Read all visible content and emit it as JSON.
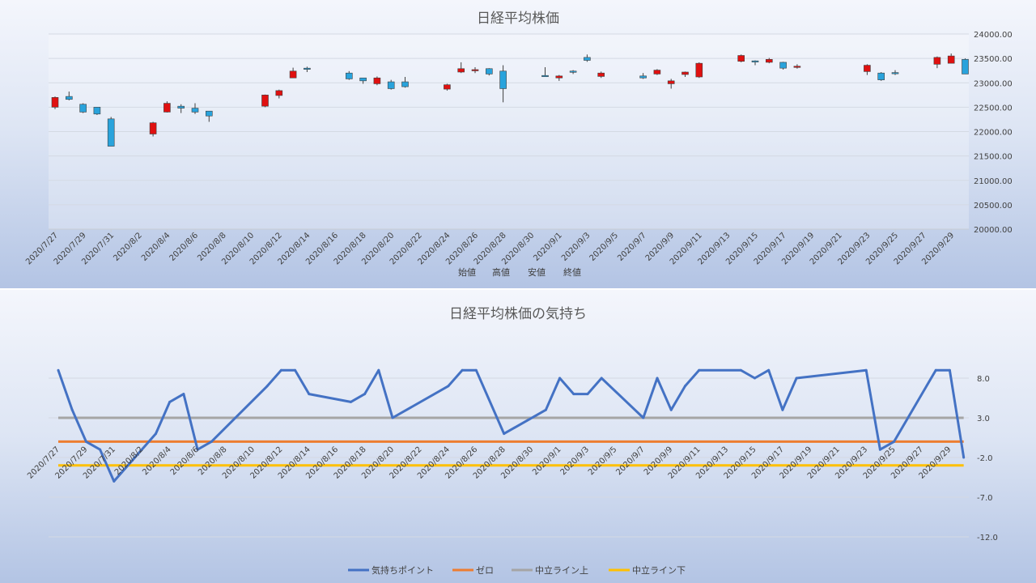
{
  "chart_data": [
    {
      "type": "candlestick",
      "title": "日経平均株価",
      "legend": [
        "始値",
        "高値",
        "安値",
        "終値"
      ],
      "legend_position": "bottom",
      "ylim": [
        20000,
        24000
      ],
      "y_ticks": [
        "20000.00",
        "20500.00",
        "21000.00",
        "21500.00",
        "22000.00",
        "22500.00",
        "23000.00",
        "23500.00",
        "24000.00"
      ],
      "x_tick_labels": [
        "2020/7/27",
        "2020/7/29",
        "2020/7/31",
        "2020/8/2",
        "2020/8/4",
        "2020/8/6",
        "2020/8/8",
        "2020/8/10",
        "2020/8/12",
        "2020/8/14",
        "2020/8/16",
        "2020/8/18",
        "2020/8/20",
        "2020/8/22",
        "2020/8/24",
        "2020/8/26",
        "2020/8/28",
        "2020/8/30",
        "2020/9/1",
        "2020/9/3",
        "2020/9/5",
        "2020/9/7",
        "2020/9/9",
        "2020/9/11",
        "2020/9/13",
        "2020/9/15",
        "2020/9/17",
        "2020/9/19",
        "2020/9/21",
        "2020/9/23",
        "2020/9/25",
        "2020/9/27",
        "2020/9/29"
      ],
      "colors": {
        "up": "#29a3dc",
        "down": "#e01010"
      },
      "candles": [
        {
          "date": "2020/7/27",
          "open": 22700,
          "high": 22720,
          "low": 22460,
          "close": 22500
        },
        {
          "date": "2020/7/28",
          "open": 22660,
          "high": 22820,
          "low": 22640,
          "close": 22720
        },
        {
          "date": "2020/7/29",
          "open": 22400,
          "high": 22580,
          "low": 22380,
          "close": 22560
        },
        {
          "date": "2020/7/30",
          "open": 22360,
          "high": 22500,
          "low": 22340,
          "close": 22500
        },
        {
          "date": "2020/7/31",
          "open": 21700,
          "high": 22300,
          "low": 21700,
          "close": 22260
        },
        {
          "date": "2020/8/3",
          "open": 22180,
          "high": 22200,
          "low": 21900,
          "close": 21950
        },
        {
          "date": "2020/8/4",
          "open": 22580,
          "high": 22620,
          "low": 22390,
          "close": 22400
        },
        {
          "date": "2020/8/5",
          "open": 22480,
          "high": 22560,
          "low": 22380,
          "close": 22520
        },
        {
          "date": "2020/8/6",
          "open": 22400,
          "high": 22580,
          "low": 22360,
          "close": 22480
        },
        {
          "date": "2020/8/7",
          "open": 22320,
          "high": 22420,
          "low": 22200,
          "close": 22420
        },
        {
          "date": "2020/8/11",
          "open": 22750,
          "high": 22760,
          "low": 22500,
          "close": 22520
        },
        {
          "date": "2020/8/12",
          "open": 22840,
          "high": 22860,
          "low": 22680,
          "close": 22740
        },
        {
          "date": "2020/8/13",
          "open": 23240,
          "high": 23310,
          "low": 23100,
          "close": 23100
        },
        {
          "date": "2020/8/14",
          "open": 23280,
          "high": 23330,
          "low": 23220,
          "close": 23300
        },
        {
          "date": "2020/8/17",
          "open": 23080,
          "high": 23240,
          "low": 23060,
          "close": 23200
        },
        {
          "date": "2020/8/18",
          "open": 23040,
          "high": 23100,
          "low": 22980,
          "close": 23100
        },
        {
          "date": "2020/8/19",
          "open": 23100,
          "high": 23130,
          "low": 22950,
          "close": 22980
        },
        {
          "date": "2020/8/20",
          "open": 22880,
          "high": 23060,
          "low": 22860,
          "close": 23020
        },
        {
          "date": "2020/8/21",
          "open": 22920,
          "high": 23120,
          "low": 22900,
          "close": 23020
        },
        {
          "date": "2020/8/24",
          "open": 22960,
          "high": 22980,
          "low": 22840,
          "close": 22870
        },
        {
          "date": "2020/8/25",
          "open": 23290,
          "high": 23420,
          "low": 23200,
          "close": 23220
        },
        {
          "date": "2020/8/26",
          "open": 23270,
          "high": 23320,
          "low": 23200,
          "close": 23250
        },
        {
          "date": "2020/8/27",
          "open": 23180,
          "high": 23300,
          "low": 23150,
          "close": 23290
        },
        {
          "date": "2020/8/28",
          "open": 22880,
          "high": 23360,
          "low": 22600,
          "close": 23240
        },
        {
          "date": "2020/8/31",
          "open": 23140,
          "high": 23320,
          "low": 23120,
          "close": 23150
        },
        {
          "date": "2020/9/1",
          "open": 23140,
          "high": 23160,
          "low": 23040,
          "close": 23100
        },
        {
          "date": "2020/9/2",
          "open": 23220,
          "high": 23260,
          "low": 23180,
          "close": 23240
        },
        {
          "date": "2020/9/3",
          "open": 23460,
          "high": 23580,
          "low": 23430,
          "close": 23520
        },
        {
          "date": "2020/9/4",
          "open": 23200,
          "high": 23230,
          "low": 23100,
          "close": 23130
        },
        {
          "date": "2020/9/7",
          "open": 23100,
          "high": 23200,
          "low": 23080,
          "close": 23140
        },
        {
          "date": "2020/9/8",
          "open": 23260,
          "high": 23280,
          "low": 23160,
          "close": 23180
        },
        {
          "date": "2020/9/9",
          "open": 23040,
          "high": 23080,
          "low": 22880,
          "close": 22980
        },
        {
          "date": "2020/9/10",
          "open": 23220,
          "high": 23230,
          "low": 23120,
          "close": 23170
        },
        {
          "date": "2020/9/11",
          "open": 23400,
          "high": 23420,
          "low": 23100,
          "close": 23120
        },
        {
          "date": "2020/9/14",
          "open": 23560,
          "high": 23580,
          "low": 23420,
          "close": 23440
        },
        {
          "date": "2020/9/15",
          "open": 23440,
          "high": 23460,
          "low": 23360,
          "close": 23450
        },
        {
          "date": "2020/9/16",
          "open": 23480,
          "high": 23510,
          "low": 23400,
          "close": 23420
        },
        {
          "date": "2020/9/17",
          "open": 23300,
          "high": 23430,
          "low": 23270,
          "close": 23420
        },
        {
          "date": "2020/9/18",
          "open": 23340,
          "high": 23380,
          "low": 23290,
          "close": 23320
        },
        {
          "date": "2020/9/23",
          "open": 23360,
          "high": 23380,
          "low": 23160,
          "close": 23230
        },
        {
          "date": "2020/9/24",
          "open": 23060,
          "high": 23220,
          "low": 23040,
          "close": 23200
        },
        {
          "date": "2020/9/25",
          "open": 23190,
          "high": 23260,
          "low": 23160,
          "close": 23210
        },
        {
          "date": "2020/9/28",
          "open": 23520,
          "high": 23540,
          "low": 23300,
          "close": 23380
        },
        {
          "date": "2020/9/29",
          "open": 23550,
          "high": 23600,
          "low": 23400,
          "close": 23400
        },
        {
          "date": "2020/9/30",
          "open": 23180,
          "high": 23500,
          "low": 23180,
          "close": 23480
        }
      ]
    },
    {
      "type": "line",
      "title": "日経平均株価の気持ち",
      "legend_position": "bottom",
      "ylim": [
        -12,
        8
      ],
      "y_ticks": [
        "-12.0",
        "-7.0",
        "-2.0",
        "3.0",
        "8.0"
      ],
      "y_tick_colors": {
        "negative": "#e01010",
        "positive": "#404040"
      },
      "x_tick_labels": [
        "2020/7/27",
        "2020/7/29",
        "2020/7/31",
        "2020/8/2",
        "2020/8/4",
        "2020/8/6",
        "2020/8/8",
        "2020/8/10",
        "2020/8/12",
        "2020/8/14",
        "2020/8/16",
        "2020/8/18",
        "2020/8/20",
        "2020/8/22",
        "2020/8/24",
        "2020/8/26",
        "2020/8/28",
        "2020/8/30",
        "2020/9/1",
        "2020/9/3",
        "2020/9/5",
        "2020/9/7",
        "2020/9/9",
        "2020/9/11",
        "2020/9/13",
        "2020/9/15",
        "2020/9/17",
        "2020/9/19",
        "2020/9/21",
        "2020/9/23",
        "2020/9/25",
        "2020/9/27",
        "2020/9/29"
      ],
      "series": [
        {
          "name": "気持ちポイント",
          "color": "#4472c4",
          "points": [
            [
              "2020/7/27",
              9
            ],
            [
              "2020/7/28",
              4
            ],
            [
              "2020/7/29",
              0
            ],
            [
              "2020/7/30",
              -1
            ],
            [
              "2020/7/31",
              -5
            ],
            [
              "2020/8/3",
              1
            ],
            [
              "2020/8/4",
              5
            ],
            [
              "2020/8/5",
              6
            ],
            [
              "2020/8/6",
              -1
            ],
            [
              "2020/8/7",
              0
            ],
            [
              "2020/8/11",
              7
            ],
            [
              "2020/8/12",
              9
            ],
            [
              "2020/8/13",
              9
            ],
            [
              "2020/8/14",
              6
            ],
            [
              "2020/8/17",
              5
            ],
            [
              "2020/8/18",
              6
            ],
            [
              "2020/8/19",
              9
            ],
            [
              "2020/8/20",
              3
            ],
            [
              "2020/8/24",
              7
            ],
            [
              "2020/8/25",
              9
            ],
            [
              "2020/8/26",
              9
            ],
            [
              "2020/8/28",
              1
            ],
            [
              "2020/8/31",
              4
            ],
            [
              "2020/9/1",
              8
            ],
            [
              "2020/9/2",
              6
            ],
            [
              "2020/9/3",
              6
            ],
            [
              "2020/9/4",
              8
            ],
            [
              "2020/9/7",
              3
            ],
            [
              "2020/9/8",
              8
            ],
            [
              "2020/9/9",
              4
            ],
            [
              "2020/9/10",
              7
            ],
            [
              "2020/9/11",
              9
            ],
            [
              "2020/9/14",
              9
            ],
            [
              "2020/9/15",
              8
            ],
            [
              "2020/9/16",
              9
            ],
            [
              "2020/9/17",
              4
            ],
            [
              "2020/9/18",
              8
            ],
            [
              "2020/9/23",
              9
            ],
            [
              "2020/9/24",
              -1
            ],
            [
              "2020/9/25",
              0
            ],
            [
              "2020/9/28",
              9
            ],
            [
              "2020/9/29",
              9
            ],
            [
              "2020/9/30",
              -2
            ]
          ]
        },
        {
          "name": "ゼロ",
          "color": "#ed7d31",
          "value": 0
        },
        {
          "name": "中立ライン上",
          "color": "#a5a5a5",
          "value": 3
        },
        {
          "name": "中立ライン下",
          "color": "#ffc000",
          "value": -3
        }
      ]
    }
  ]
}
